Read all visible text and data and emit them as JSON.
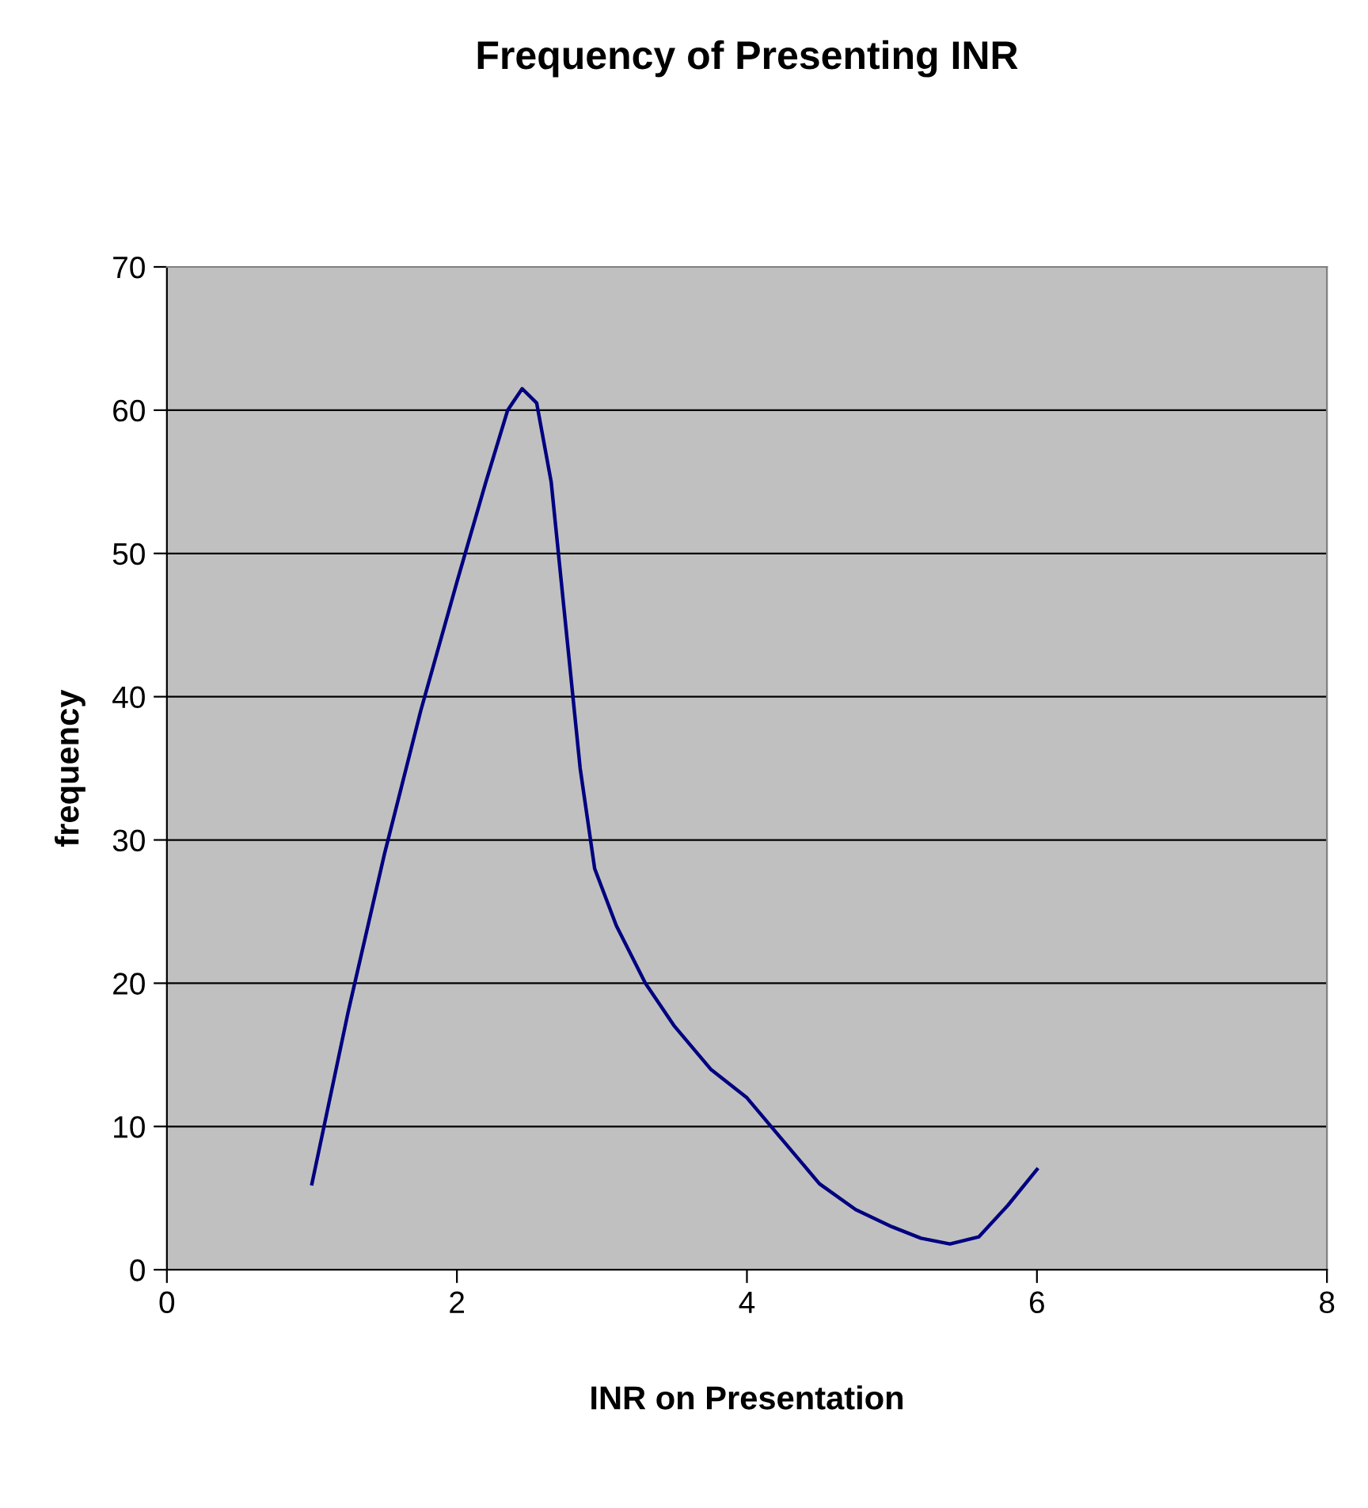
{
  "chart_data": {
    "type": "line",
    "title": "Frequency of Presenting INR",
    "xlabel": "INR on Presentation",
    "ylabel": "frequency",
    "x": [
      1,
      1.25,
      1.5,
      1.75,
      2,
      2.2,
      2.35,
      2.45,
      2.55,
      2.65,
      2.75,
      2.85,
      2.95,
      3.1,
      3.3,
      3.5,
      3.75,
      4,
      4.25,
      4.5,
      4.75,
      5,
      5.2,
      5.4,
      5.6,
      5.8,
      6
    ],
    "series": [
      {
        "color": "#000080",
        "values": [
          6,
          18,
          29,
          39,
          48,
          55,
          60,
          61.5,
          60.5,
          55,
          45,
          35,
          28,
          24,
          20,
          17,
          14,
          12,
          9,
          6,
          4.2,
          3,
          2.2,
          1.8,
          2.3,
          4.5,
          7
        ]
      }
    ],
    "xlim": [
      0,
      8
    ],
    "xticks": [
      0,
      2,
      4,
      6,
      8
    ],
    "ylim": [
      0,
      70
    ],
    "yticks": [
      0,
      10,
      20,
      30,
      40,
      50,
      60,
      70
    ],
    "grid": "y",
    "marker": "none",
    "line_style": "solid",
    "legend": false
  }
}
